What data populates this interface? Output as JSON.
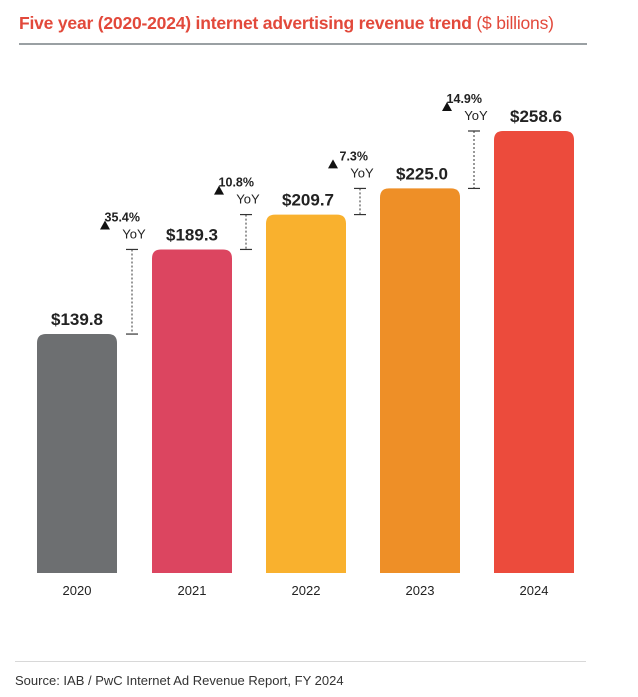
{
  "chart_data": {
    "type": "bar",
    "title": "Five year (2020-2024) internet advertising revenue trend",
    "title_suffix": "($ billions)",
    "categories": [
      "2020",
      "2021",
      "2022",
      "2023",
      "2024"
    ],
    "values": [
      139.8,
      189.3,
      209.7,
      225.0,
      258.6
    ],
    "value_labels": [
      "$139.8",
      "$189.3",
      "$209.7",
      "$225.0",
      "$258.6"
    ],
    "colors": [
      "#6d6f71",
      "#dc4560",
      "#f9b12e",
      "#ee8f27",
      "#ec4b3c"
    ],
    "yoy_growth": [
      {
        "from": "2020",
        "to": "2021",
        "percent": 35.4,
        "label": "35.4%",
        "unit": "YoY"
      },
      {
        "from": "2021",
        "to": "2022",
        "percent": 10.8,
        "label": "10.8%",
        "unit": "YoY"
      },
      {
        "from": "2022",
        "to": "2023",
        "percent": 7.3,
        "label": "7.3%",
        "unit": "YoY"
      },
      {
        "from": "2023",
        "to": "2024",
        "percent": 14.9,
        "label": "14.9%",
        "unit": "YoY"
      }
    ],
    "xlabel": "",
    "ylabel": "",
    "grid": false,
    "legend": "none"
  },
  "source": "Source:  IAB / PwC Internet Ad Revenue Report, FY 2024",
  "up_arrow_glyph": "▲"
}
